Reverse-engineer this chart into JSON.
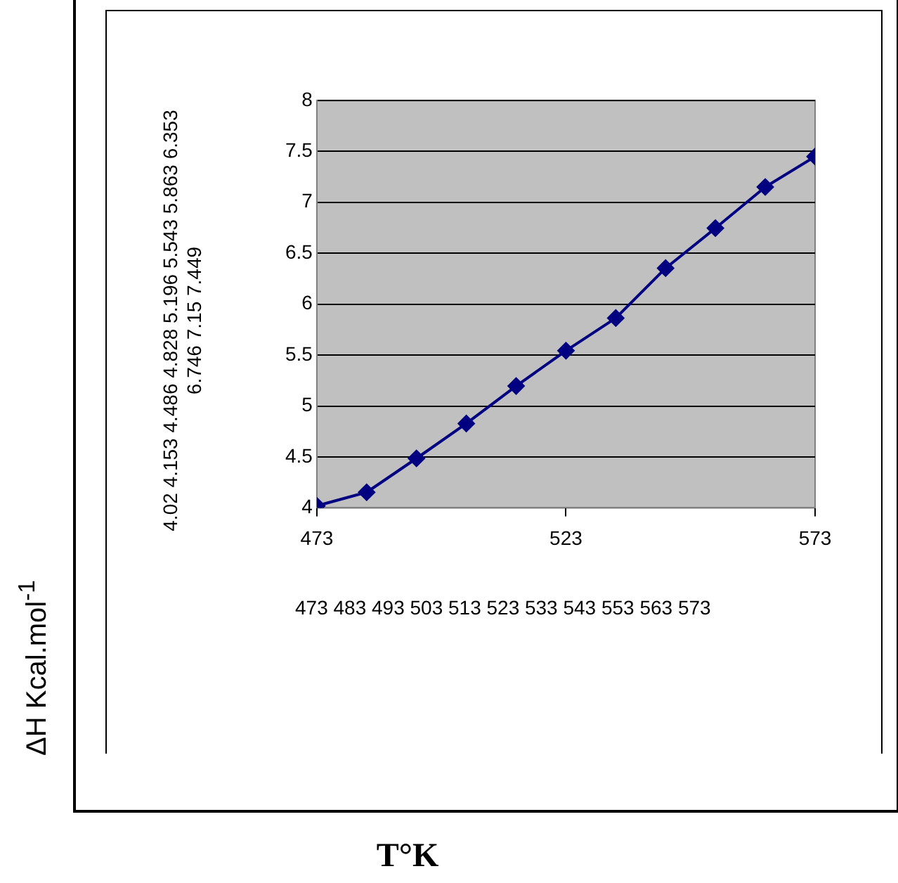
{
  "chart_data": {
    "type": "line",
    "x": [
      473,
      483,
      493,
      503,
      513,
      523,
      533,
      543,
      553,
      563,
      573
    ],
    "series": [
      {
        "color": "#000080",
        "values": [
          4.02,
          4.153,
          4.486,
          4.828,
          5.196,
          5.543,
          5.863,
          6.353,
          6.746,
          7.15,
          7.449
        ]
      }
    ],
    "xlim": [
      473,
      573
    ],
    "xticks": [
      473,
      523,
      573
    ],
    "ylim": [
      4,
      8
    ],
    "yticks": [
      4,
      4.5,
      5,
      5.5,
      6,
      6.5,
      7,
      7.5,
      8
    ],
    "grid": "y",
    "legend": false,
    "marker": "diamond",
    "line_style": "solid",
    "annotations": [
      "4.02 4.153 4.486 4.828 5.196 5.543 5.863 6.353 6.746 7.15 7.449",
      "473 483 493 503 513 523 533 543 553 563 573",
      "T°K",
      "ΔH Kcal.mol$^{-1}$"
    ]
  }
}
